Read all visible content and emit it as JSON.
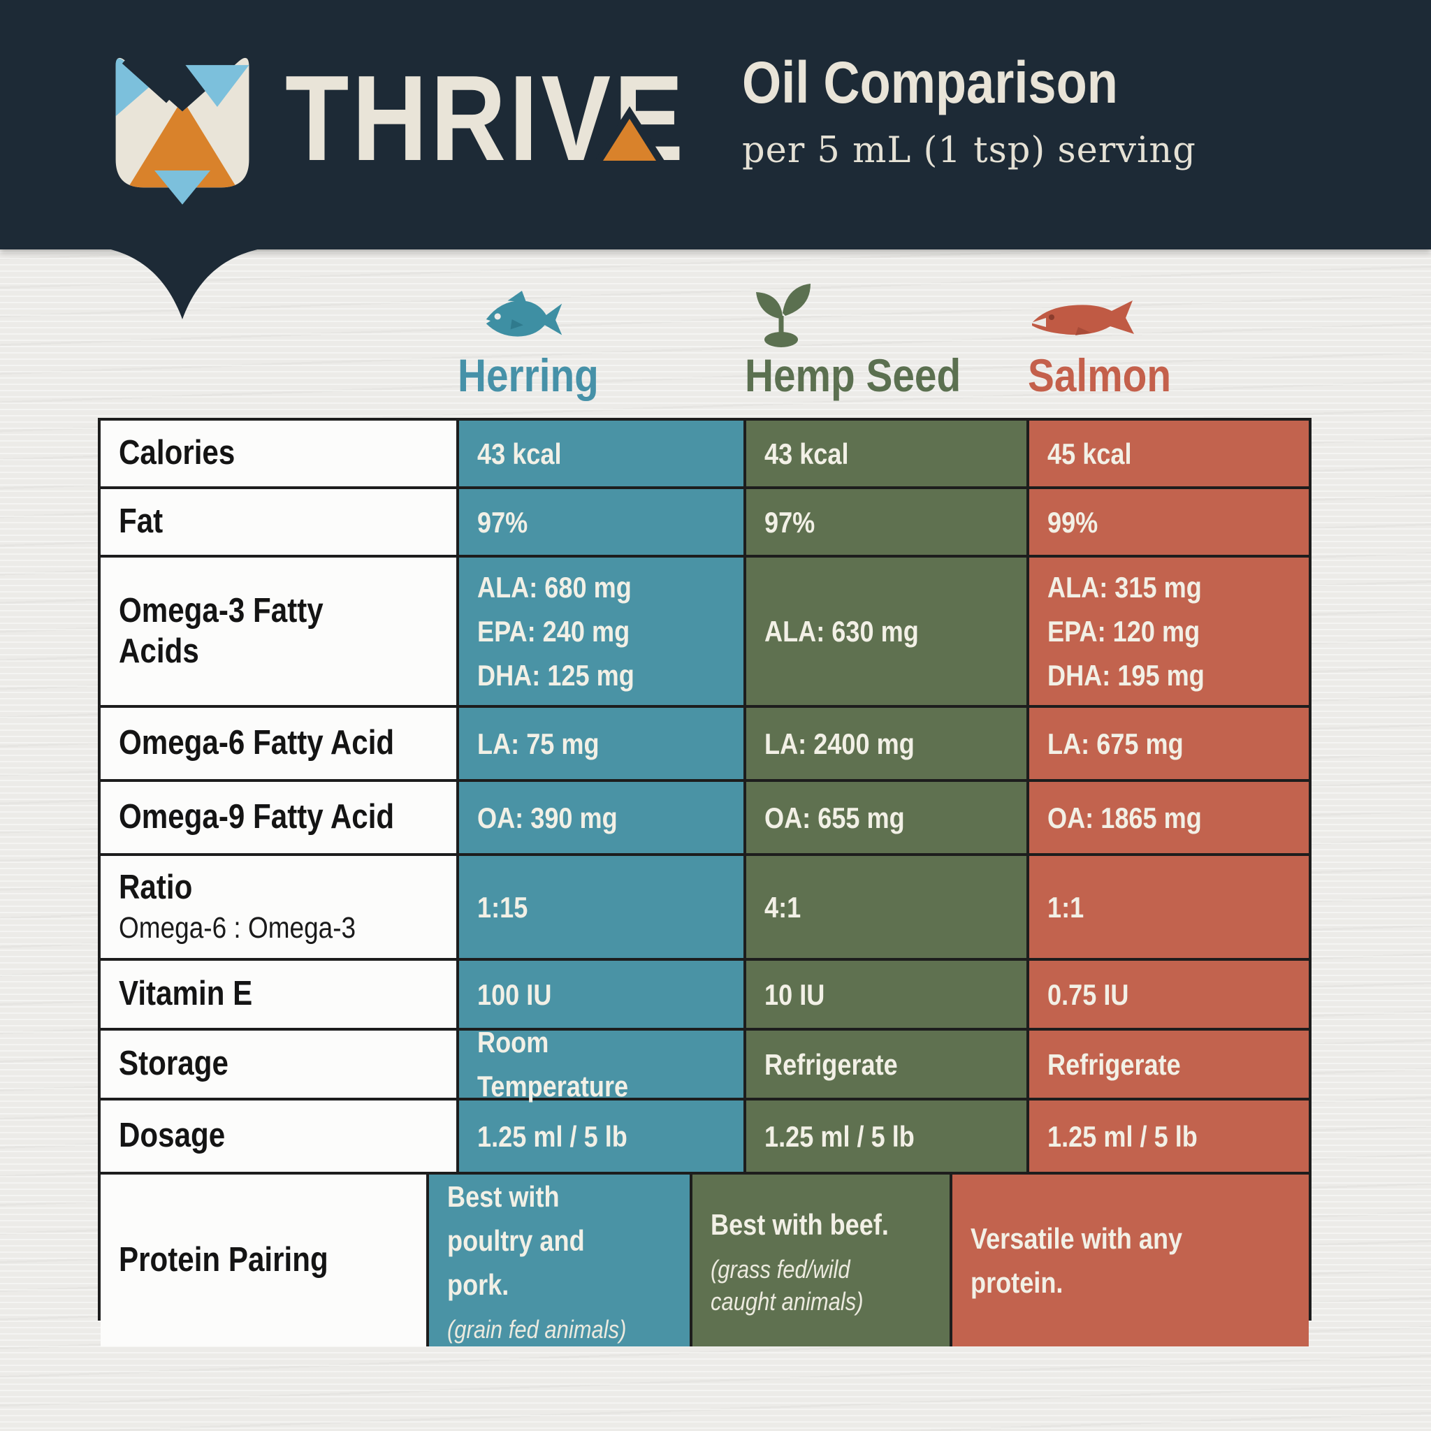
{
  "header": {
    "brand": "THRIVE",
    "title": "Oil Comparison",
    "subtitle": "per 5 mL (1 tsp) serving"
  },
  "colors": {
    "header_bg": "#1d2a36",
    "cream": "#e9e4d8",
    "orange": "#d9822b",
    "sky_blue": "#7cc0dc",
    "herring_teal": "#4a93a5",
    "hemp_olive": "#5f7150",
    "salmon_red": "#c2634e",
    "table_border": "#1d1d1d",
    "page_bg": "#ecebe8"
  },
  "table": {
    "columns": [
      {
        "name": "Herring",
        "icon": "herring-fish-icon",
        "cell_color": "#4a93a5",
        "label_color": "#4691a8"
      },
      {
        "name": "Hemp Seed",
        "icon": "hemp-seedling-icon",
        "cell_color": "#5f7150",
        "label_color": "#5b7050"
      },
      {
        "name": "Salmon",
        "icon": "salmon-fish-icon",
        "cell_color": "#c2634e",
        "label_color": "#c4604b"
      }
    ],
    "rows": [
      {
        "label": "Calories",
        "cells": [
          {
            "lines": [
              "43 kcal"
            ]
          },
          {
            "lines": [
              "43 kcal"
            ]
          },
          {
            "lines": [
              "45 kcal"
            ]
          }
        ]
      },
      {
        "label": "Fat",
        "cells": [
          {
            "lines": [
              "97%"
            ]
          },
          {
            "lines": [
              "97%"
            ]
          },
          {
            "lines": [
              "99%"
            ]
          }
        ]
      },
      {
        "label": "Omega-3 Fatty Acids",
        "cells": [
          {
            "lines": [
              "ALA: 680 mg",
              "EPA: 240 mg",
              "DHA: 125 mg"
            ]
          },
          {
            "lines": [
              "ALA: 630 mg"
            ]
          },
          {
            "lines": [
              "ALA: 315 mg",
              "EPA: 120 mg",
              "DHA: 195 mg"
            ]
          }
        ]
      },
      {
        "label": "Omega-6 Fatty Acid",
        "cells": [
          {
            "lines": [
              "LA: 75 mg"
            ]
          },
          {
            "lines": [
              "LA: 2400 mg"
            ]
          },
          {
            "lines": [
              "LA: 675 mg"
            ]
          }
        ]
      },
      {
        "label": "Omega-9 Fatty Acid",
        "cells": [
          {
            "lines": [
              "OA: 390 mg"
            ]
          },
          {
            "lines": [
              "OA: 655 mg"
            ]
          },
          {
            "lines": [
              "OA: 1865 mg"
            ]
          }
        ]
      },
      {
        "label": "Ratio",
        "sublabel": "Omega-6 : Omega-3",
        "cells": [
          {
            "lines": [
              "1:15"
            ]
          },
          {
            "lines": [
              "4:1"
            ]
          },
          {
            "lines": [
              "1:1"
            ]
          }
        ]
      },
      {
        "label": "Vitamin E",
        "cells": [
          {
            "lines": [
              "100 IU"
            ]
          },
          {
            "lines": [
              "10 IU"
            ]
          },
          {
            "lines": [
              "0.75 IU"
            ]
          }
        ]
      },
      {
        "label": "Storage",
        "cells": [
          {
            "lines": [
              "Room Temperature"
            ]
          },
          {
            "lines": [
              "Refrigerate"
            ]
          },
          {
            "lines": [
              "Refrigerate"
            ]
          }
        ]
      },
      {
        "label": "Dosage",
        "cells": [
          {
            "lines": [
              "1.25 ml / 5 lb"
            ]
          },
          {
            "lines": [
              "1.25 ml / 5 lb"
            ]
          },
          {
            "lines": [
              "1.25 ml / 5 lb"
            ]
          }
        ]
      },
      {
        "label": "Protein Pairing",
        "cells": [
          {
            "lines": [
              "Best with poultry and pork."
            ],
            "note": "(grain fed animals)"
          },
          {
            "lines": [
              "Best with beef."
            ],
            "note": "(grass fed/wild caught animals)"
          },
          {
            "lines": [
              "Versatile with any protein."
            ]
          }
        ]
      }
    ]
  },
  "chart_data": {
    "type": "table",
    "title": "Oil Comparison",
    "subtitle": "per 5 mL (1 tsp) serving",
    "columns": [
      "",
      "Herring",
      "Hemp Seed",
      "Salmon"
    ],
    "rows": [
      [
        "Calories",
        "43 kcal",
        "43 kcal",
        "45 kcal"
      ],
      [
        "Fat",
        "97%",
        "97%",
        "99%"
      ],
      [
        "Omega-3 Fatty Acids",
        "ALA: 680 mg; EPA: 240 mg; DHA: 125 mg",
        "ALA: 630 mg",
        "ALA: 315 mg; EPA: 120 mg; DHA: 195 mg"
      ],
      [
        "Omega-6 Fatty Acid",
        "LA: 75 mg",
        "LA: 2400 mg",
        "LA: 675 mg"
      ],
      [
        "Omega-9 Fatty Acid",
        "OA: 390 mg",
        "OA: 655 mg",
        "OA: 1865 mg"
      ],
      [
        "Ratio Omega-6 : Omega-3",
        "1:15",
        "4:1",
        "1:1"
      ],
      [
        "Vitamin E",
        "100 IU",
        "10 IU",
        "0.75 IU"
      ],
      [
        "Storage",
        "Room Temperature",
        "Refrigerate",
        "Refrigerate"
      ],
      [
        "Dosage",
        "1.25 ml / 5 lb",
        "1.25 ml / 5 lb",
        "1.25 ml / 5 lb"
      ],
      [
        "Protein Pairing",
        "Best with poultry and pork. (grain fed animals)",
        "Best with beef. (grass fed/wild caught animals)",
        "Versatile with any protein."
      ]
    ]
  }
}
